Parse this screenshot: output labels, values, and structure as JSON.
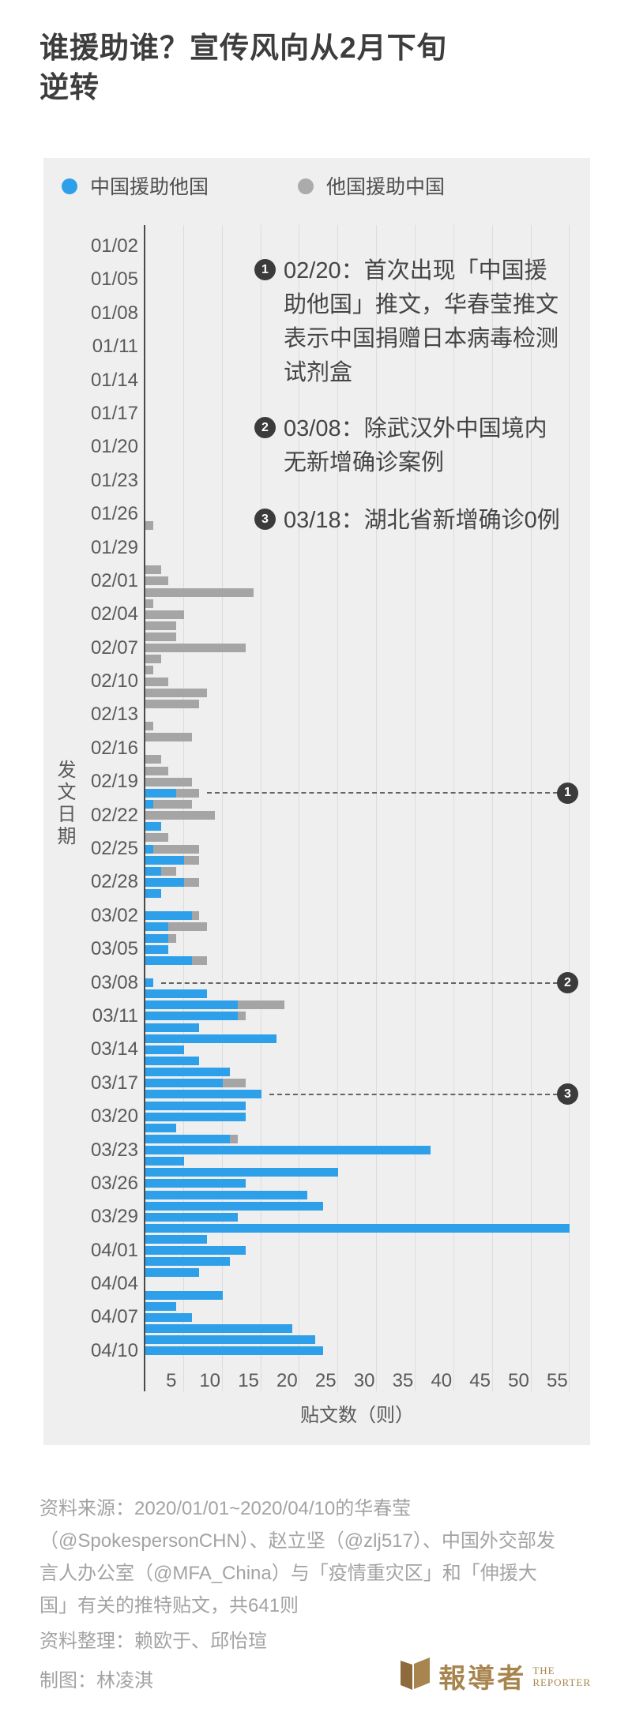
{
  "title_line1": "谁援助谁？宣传风向从2月下旬",
  "title_line2": "逆转",
  "legend": {
    "items": [
      {
        "label": "中国援助他国",
        "color": "#2ea0ea"
      },
      {
        "label": "他国援助中国",
        "color": "#ababab"
      }
    ]
  },
  "annotations": [
    {
      "num": "1",
      "date": "02/20",
      "lines": [
        "02/20：首次出现「中国援",
        "助他国」推文，华春莹推文",
        "表示中国捐赠日本病毒检测",
        "试剂盒"
      ]
    },
    {
      "num": "2",
      "date": "03/08",
      "lines": [
        "03/08：除武汉外中国境内",
        "无新增确诊案例"
      ]
    },
    {
      "num": "3",
      "date": "03/18",
      "lines": [
        "03/18：湖北省新增确诊0例"
      ]
    }
  ],
  "chart_data": {
    "type": "bar",
    "orientation": "horizontal-stacked",
    "series_names": [
      "中国援助他国",
      "他国援助中国"
    ],
    "x_axis": {
      "label": "贴文数（则）",
      "ticks": [
        5,
        10,
        15,
        20,
        25,
        30,
        35,
        40,
        45,
        50,
        55
      ],
      "max": 57
    },
    "y_axis": {
      "label": "发文日期",
      "date_range": [
        "01/01",
        "04/10"
      ],
      "tick_labels": [
        "01/02",
        "01/05",
        "01/08",
        "01/11",
        "01/14",
        "01/17",
        "01/20",
        "01/23",
        "01/26",
        "01/29",
        "02/01",
        "02/04",
        "02/07",
        "02/10",
        "02/13",
        "02/16",
        "02/19",
        "02/22",
        "02/25",
        "02/28",
        "03/02",
        "03/05",
        "03/08",
        "03/11",
        "03/14",
        "03/17",
        "03/20",
        "03/23",
        "03/26",
        "03/29",
        "04/01",
        "04/04",
        "04/07",
        "04/10"
      ]
    },
    "bars": [
      {
        "d": "01/27",
        "china": 0,
        "others": 1
      },
      {
        "d": "01/31",
        "china": 0,
        "others": 2
      },
      {
        "d": "02/01",
        "china": 0,
        "others": 3
      },
      {
        "d": "02/02",
        "china": 0,
        "others": 14
      },
      {
        "d": "02/03",
        "china": 0,
        "others": 1
      },
      {
        "d": "02/04",
        "china": 0,
        "others": 5
      },
      {
        "d": "02/05",
        "china": 0,
        "others": 4
      },
      {
        "d": "02/06",
        "china": 0,
        "others": 4
      },
      {
        "d": "02/07",
        "china": 0,
        "others": 13
      },
      {
        "d": "02/08",
        "china": 0,
        "others": 2
      },
      {
        "d": "02/09",
        "china": 0,
        "others": 1
      },
      {
        "d": "02/10",
        "china": 0,
        "others": 3
      },
      {
        "d": "02/11",
        "china": 0,
        "others": 8
      },
      {
        "d": "02/12",
        "china": 0,
        "others": 7
      },
      {
        "d": "02/14",
        "china": 0,
        "others": 1
      },
      {
        "d": "02/15",
        "china": 0,
        "others": 6
      },
      {
        "d": "02/17",
        "china": 0,
        "others": 2
      },
      {
        "d": "02/18",
        "china": 0,
        "others": 3
      },
      {
        "d": "02/19",
        "china": 0,
        "others": 6
      },
      {
        "d": "02/20",
        "china": 4,
        "others": 3
      },
      {
        "d": "02/21",
        "china": 1,
        "others": 5
      },
      {
        "d": "02/22",
        "china": 0,
        "others": 9
      },
      {
        "d": "02/23",
        "china": 2,
        "others": 0
      },
      {
        "d": "02/24",
        "china": 0,
        "others": 3
      },
      {
        "d": "02/25",
        "china": 1,
        "others": 6
      },
      {
        "d": "02/26",
        "china": 5,
        "others": 2
      },
      {
        "d": "02/27",
        "china": 2,
        "others": 2
      },
      {
        "d": "02/28",
        "china": 5,
        "others": 2
      },
      {
        "d": "02/29",
        "china": 2,
        "others": 0
      },
      {
        "d": "03/02",
        "china": 6,
        "others": 1
      },
      {
        "d": "03/03",
        "china": 3,
        "others": 5
      },
      {
        "d": "03/04",
        "china": 3,
        "others": 1
      },
      {
        "d": "03/05",
        "china": 3,
        "others": 0
      },
      {
        "d": "03/06",
        "china": 6,
        "others": 2
      },
      {
        "d": "03/08",
        "china": 1,
        "others": 0
      },
      {
        "d": "03/09",
        "china": 8,
        "others": 0
      },
      {
        "d": "03/10",
        "china": 12,
        "others": 6
      },
      {
        "d": "03/11",
        "china": 12,
        "others": 1
      },
      {
        "d": "03/12",
        "china": 7,
        "others": 0
      },
      {
        "d": "03/13",
        "china": 17,
        "others": 0
      },
      {
        "d": "03/14",
        "china": 5,
        "others": 0
      },
      {
        "d": "03/15",
        "china": 7,
        "others": 0
      },
      {
        "d": "03/16",
        "china": 11,
        "others": 0
      },
      {
        "d": "03/17",
        "china": 10,
        "others": 3
      },
      {
        "d": "03/18",
        "china": 15,
        "others": 0
      },
      {
        "d": "03/19",
        "china": 13,
        "others": 0
      },
      {
        "d": "03/20",
        "china": 13,
        "others": 0
      },
      {
        "d": "03/21",
        "china": 4,
        "others": 0
      },
      {
        "d": "03/22",
        "china": 11,
        "others": 1
      },
      {
        "d": "03/23",
        "china": 37,
        "others": 0
      },
      {
        "d": "03/24",
        "china": 5,
        "others": 0
      },
      {
        "d": "03/25",
        "china": 25,
        "others": 0
      },
      {
        "d": "03/26",
        "china": 13,
        "others": 0
      },
      {
        "d": "03/27",
        "china": 21,
        "others": 0
      },
      {
        "d": "03/28",
        "china": 23,
        "others": 0
      },
      {
        "d": "03/29",
        "china": 12,
        "others": 0
      },
      {
        "d": "03/30",
        "china": 55,
        "others": 0
      },
      {
        "d": "03/31",
        "china": 8,
        "others": 0
      },
      {
        "d": "04/01",
        "china": 13,
        "others": 0
      },
      {
        "d": "04/02",
        "china": 11,
        "others": 0
      },
      {
        "d": "04/03",
        "china": 7,
        "others": 0
      },
      {
        "d": "04/05",
        "china": 10,
        "others": 0
      },
      {
        "d": "04/06",
        "china": 4,
        "others": 0
      },
      {
        "d": "04/07",
        "china": 6,
        "others": 0
      },
      {
        "d": "04/08",
        "china": 19,
        "others": 0
      },
      {
        "d": "04/09",
        "china": 22,
        "others": 0
      },
      {
        "d": "04/10",
        "china": 23,
        "others": 0
      }
    ]
  },
  "footer": {
    "source_lines": [
      "资料来源：2020/01/01~2020/04/10的华春莹",
      "（@SpokespersonCHN）、赵立坚（@zlj517）、中国外交部发",
      "言人办公室（@MFA_China）与「疫情重灾区」和「伸援大",
      "国」有关的推特贴文，共641则"
    ],
    "credit_data": "资料整理：赖欧于、邱怡瑄",
    "credit_chart": "制图：林凌淇",
    "logo": {
      "cn": "報導者",
      "en1": "THE",
      "en2": "REPORTER"
    }
  },
  "colors": {
    "china_blue": "#2ea0ea",
    "others_gray": "#a5a5a5",
    "panel_bg": "#f0efef",
    "gold": "#a8854f"
  }
}
